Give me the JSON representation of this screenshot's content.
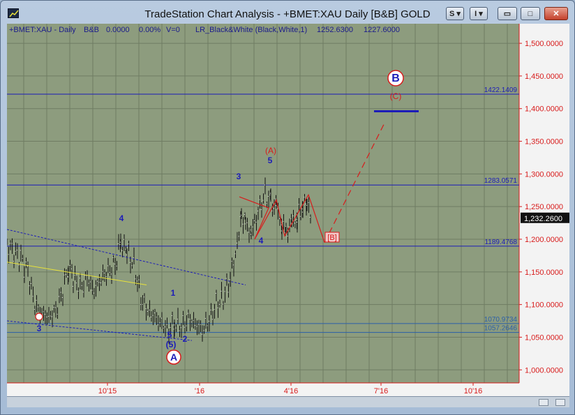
{
  "window": {
    "title": "TradeStation Chart Analysis - +BMET:XAU Daily [B&B] GOLD",
    "buttons": {
      "s": "S ▾",
      "i": "I ▾",
      "min": "▭",
      "max": "□",
      "close": "✕"
    }
  },
  "chart_data": {
    "type": "bar",
    "title": "",
    "header": {
      "symbol": "+BMET:XAU - Daily",
      "bb": "B&B",
      "val1": "0.0000",
      "val2": "0.00%",
      "v": "V=0",
      "indicator": "LR_Black&White (Black,White,1)",
      "high": "1252.6300",
      "low": "1227.6000"
    },
    "ylim": [
      980,
      1530
    ],
    "y_ticks": [
      1000,
      1050,
      1100,
      1150,
      1200,
      1250,
      1300,
      1350,
      1400,
      1450,
      1500
    ],
    "y_tick_labels": [
      "1,000.0000",
      "1,050.0000",
      "1,100.0000",
      "1,150.0000",
      "1,200.0000",
      "1,250.0000",
      "1,300.0000",
      "1,350.0000",
      "1,400.0000",
      "1,450.0000",
      "1,500.0000"
    ],
    "x_ticks": [
      "10'15",
      "'16",
      "4'16",
      "7'16",
      "10'16"
    ],
    "current_price": "1,232.2600",
    "horizontal_levels": [
      {
        "value": 1422.1409,
        "label": "1422.1409",
        "color": "#1c1cb8"
      },
      {
        "value": 1283.0571,
        "label": "1283.0571",
        "color": "#1c1cb8"
      },
      {
        "value": 1189.4768,
        "label": "1189.4768",
        "color": "#1c1cb8"
      },
      {
        "value": 1070.9734,
        "label": "1070.9734",
        "color": "#2b5fa8"
      },
      {
        "value": 1057.2646,
        "label": "1057.2646",
        "color": "#2b5fa8"
      }
    ],
    "wave_labels": [
      {
        "text": "3",
        "color": "#1c1cb8"
      },
      {
        "text": "4",
        "color": "#1c1cb8"
      },
      {
        "text": "1",
        "color": "#1c1cb8"
      },
      {
        "text": "5",
        "color": "#1c1cb8"
      },
      {
        "text": "(5)",
        "color": "#1c1cb8"
      },
      {
        "text": "2",
        "color": "#1c1cb8"
      },
      {
        "text": "A",
        "color": "#1c1cb8"
      },
      {
        "text": "3",
        "color": "#1c1cb8"
      },
      {
        "text": "4",
        "color": "#1c1cb8"
      },
      {
        "text": "5",
        "color": "#1c1cb8"
      },
      {
        "text": "(A)",
        "color": "#d81b1b"
      },
      {
        "text": "[B]",
        "color": "#d81b1b"
      },
      {
        "text": "(C)",
        "color": "#d81b1b"
      },
      {
        "text": "B",
        "color": "#1c1cb8"
      }
    ],
    "colors": {
      "background": "#8d9c7e",
      "grid": "#6f7c63",
      "bars": "#111111",
      "axis": "#d81b1b",
      "wave_blue": "#1c1cb8",
      "projection": "#d81b1b",
      "trend_yellow": "#e8e23a"
    }
  }
}
